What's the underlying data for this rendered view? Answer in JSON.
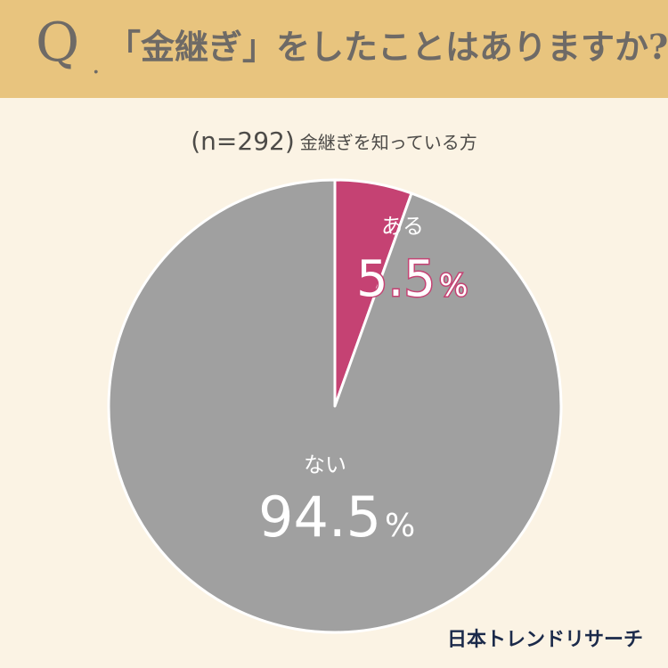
{
  "header": {
    "q_mark": "Q",
    "q_dot": ".",
    "question": "「金継ぎ」をしたことはありますか?"
  },
  "subtitle": {
    "sample": "(n=292)",
    "description": "金継ぎを知っている方"
  },
  "chart_data": {
    "type": "pie",
    "title": "「金継ぎ」をしたことはありますか?",
    "slices": [
      {
        "label": "ある",
        "value": 5.5,
        "display": "5.5",
        "unit": "%",
        "color": "#c54273"
      },
      {
        "label": "ない",
        "value": 94.5,
        "display": "94.5",
        "unit": "%",
        "color": "#a0a0a0"
      }
    ],
    "start_angle_deg": 0,
    "direction": "clockwise"
  },
  "brand": "日本トレンドリサーチ",
  "colors": {
    "header_bg": "#e8c47e",
    "page_bg": "#fbf3e4",
    "brand_text": "#1b2a4a"
  }
}
